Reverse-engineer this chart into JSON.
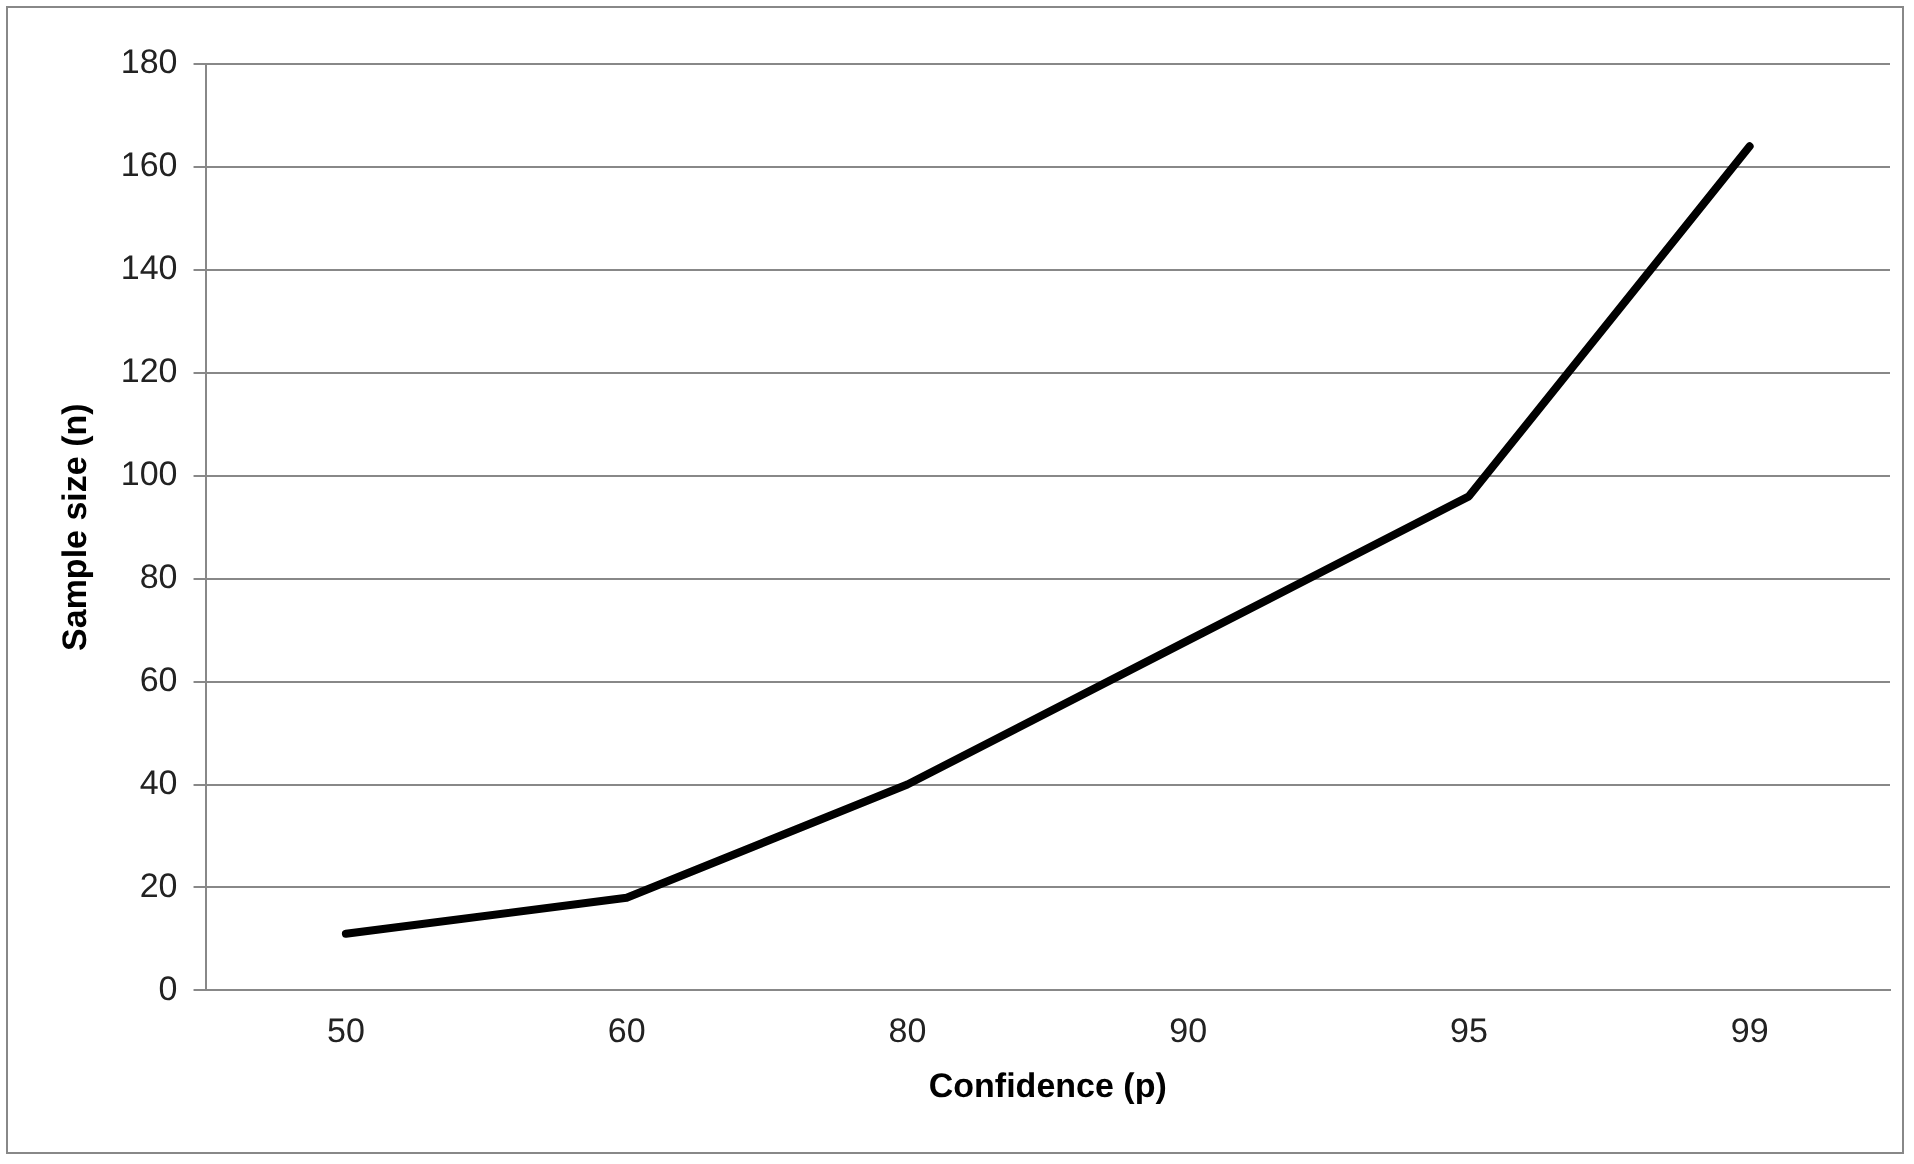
{
  "chart_data": {
    "type": "line",
    "xlabel": "Confidence (p)",
    "ylabel": "Sample size (n)",
    "categories": [
      "50",
      "60",
      "80",
      "90",
      "95",
      "99"
    ],
    "series": [
      {
        "color": "#000000",
        "values": [
          11,
          18,
          40,
          68,
          96,
          164
        ]
      }
    ],
    "ylim": [
      0,
      180
    ],
    "yticks": [
      0,
      20,
      40,
      60,
      80,
      100,
      120,
      140,
      160,
      180
    ],
    "grid": "y",
    "legend": false,
    "marker": "none",
    "line_style": "solid"
  }
}
